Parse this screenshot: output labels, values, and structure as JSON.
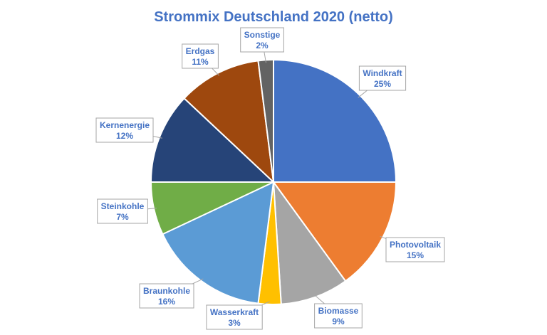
{
  "chart_data": {
    "type": "pie",
    "title": "Strommix Deutschland 2020 (netto)",
    "categories": [
      "Windkraft",
      "Photovoltaik",
      "Biomasse",
      "Wasserkraft",
      "Braunkohle",
      "Steinkohle",
      "Kernenergie",
      "Erdgas",
      "Sonstige"
    ],
    "values": [
      25,
      15,
      9,
      3,
      16,
      7,
      12,
      11,
      2
    ],
    "labels": [
      "25%",
      "15%",
      "9%",
      "3%",
      "16%",
      "7%",
      "12%",
      "11%",
      "2%"
    ],
    "colors": [
      "#4472c4",
      "#ed7d31",
      "#a5a5a5",
      "#ffc000",
      "#5b9bd5",
      "#70ad47",
      "#264478",
      "#9e480e",
      "#636363"
    ],
    "start_angle_deg": 0,
    "direction": "clockwise",
    "legend": "none"
  }
}
